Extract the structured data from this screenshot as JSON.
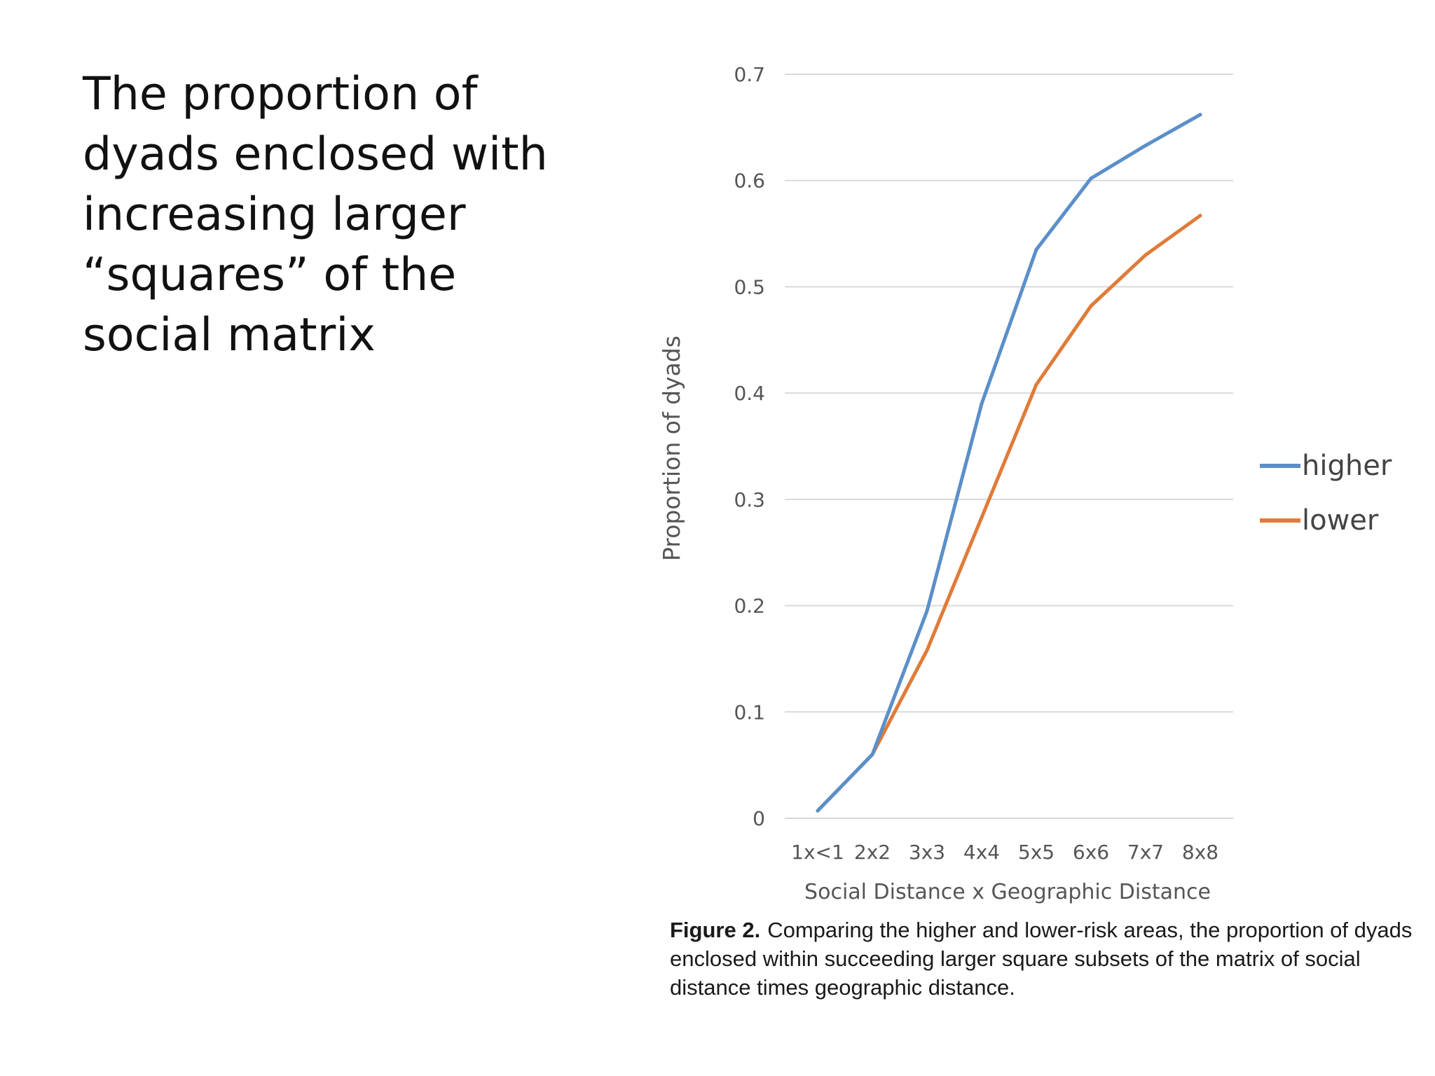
{
  "slide": {
    "title": "The proportion of\ndyads enclosed with\nincreasing larger\n“squares” of the\nsocial matrix"
  },
  "chart_data": {
    "type": "line",
    "categories": [
      "1x<1",
      "2x2",
      "3x3",
      "4x4",
      "5x5",
      "6x6",
      "7x7",
      "8x8"
    ],
    "series": [
      {
        "name": "higher",
        "color": "#5b8fc9",
        "values": [
          0.007,
          0.06,
          0.195,
          0.39,
          0.535,
          0.602,
          0.633,
          0.662
        ]
      },
      {
        "name": "lower",
        "color": "#e07b39",
        "values": [
          0.007,
          0.06,
          0.158,
          0.283,
          0.408,
          0.482,
          0.53,
          0.567
        ]
      }
    ],
    "title": "",
    "xlabel": "Social Distance x Geographic Distance",
    "ylabel": "Proportion of dyads",
    "ylim": [
      0,
      0.7
    ],
    "yticks": [
      "0",
      "0.1",
      "0.2",
      "0.3",
      "0.4",
      "0.5",
      "0.6",
      "0.7"
    ],
    "grid": true,
    "legend": "right"
  },
  "caption": {
    "label": "Figure 2.",
    "text": "Comparing the higher and lower-risk areas, the proportion of dyads enclosed within succeeding larger square subsets of the matrix of social distance times geographic distance."
  }
}
